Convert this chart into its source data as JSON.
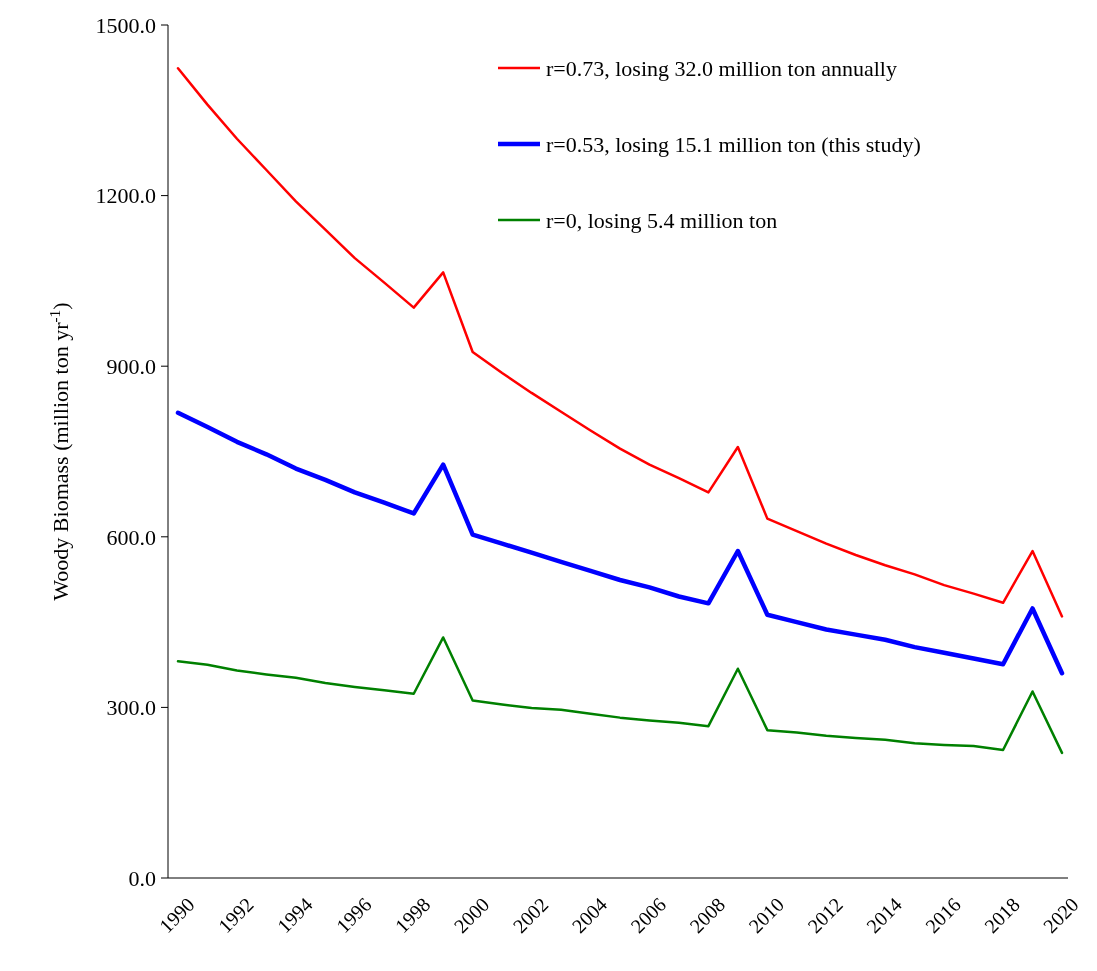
{
  "chart_data": {
    "type": "line",
    "ylabel": "Woody Biomass (million ton yr$^{-1}$)",
    "categories": [
      "1990",
      null,
      "1992",
      null,
      "1994",
      null,
      "1996",
      null,
      "1998",
      null,
      "2000",
      null,
      "2002",
      null,
      "2004",
      null,
      "2006",
      null,
      "2008",
      null,
      "2010",
      null,
      "2012",
      null,
      "2014",
      null,
      "2016",
      null,
      "2018",
      null,
      "2020"
    ],
    "ylim": [
      0,
      1500
    ],
    "yticks": [
      {
        "value": 0,
        "label": "0.0"
      },
      {
        "value": 300,
        "label": "300.0"
      },
      {
        "value": 600,
        "label": "600.0"
      },
      {
        "value": 900,
        "label": "900.0"
      },
      {
        "value": 1200,
        "label": "1200.0"
      },
      {
        "value": 1500,
        "label": "1500.0"
      }
    ],
    "legend": "top right",
    "grid": false,
    "marker": "none",
    "line_style": "solid",
    "series": [
      {
        "name": "r=0.73, losing 32.0 million ton annually",
        "color": "#ff0000",
        "values": [
          1424,
          1360,
          1300,
          1245,
          1190,
          1140,
          1090,
          1047,
          1003,
          1065,
          925,
          888,
          853,
          820,
          787,
          755,
          727,
          703,
          678,
          758,
          632,
          610,
          588,
          568,
          550,
          534,
          515,
          500,
          484,
          575,
          460
        ]
      },
      {
        "name": "r=0.53, losing 15.1 million ton (this study)",
        "color": "#0000ff",
        "values": [
          818,
          793,
          767,
          745,
          720,
          700,
          678,
          660,
          641,
          727,
          604,
          588,
          572,
          556,
          540,
          524,
          511,
          495,
          483,
          575,
          463,
          450,
          437,
          428,
          419,
          406,
          396,
          386,
          376,
          474,
          360
        ]
      },
      {
        "name": "r=0, losing 5.4 million ton",
        "color": "#008000",
        "values": [
          381,
          375,
          365,
          358,
          352,
          343,
          336,
          330,
          324,
          423,
          312,
          305,
          299,
          296,
          289,
          282,
          277,
          273,
          267,
          368,
          260,
          256,
          250,
          246,
          243,
          237,
          234,
          232,
          225,
          328,
          220
        ]
      }
    ]
  }
}
